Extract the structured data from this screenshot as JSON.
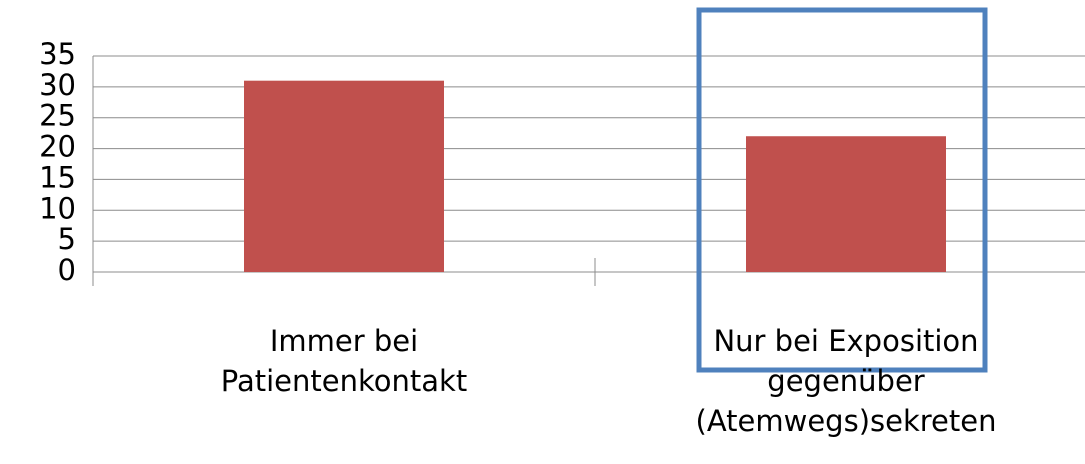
{
  "chart_data": {
    "type": "bar",
    "categories": [
      "Immer bei Patientenkontakt",
      "Nur bei Exposition gegenüber (Atemwegs)sekreten"
    ],
    "values": [
      31,
      22
    ],
    "color": "#c0504d",
    "ylim": [
      0,
      35
    ],
    "yticks": [
      0,
      5,
      10,
      15,
      20,
      25,
      30,
      35
    ],
    "grid": true
  }
}
